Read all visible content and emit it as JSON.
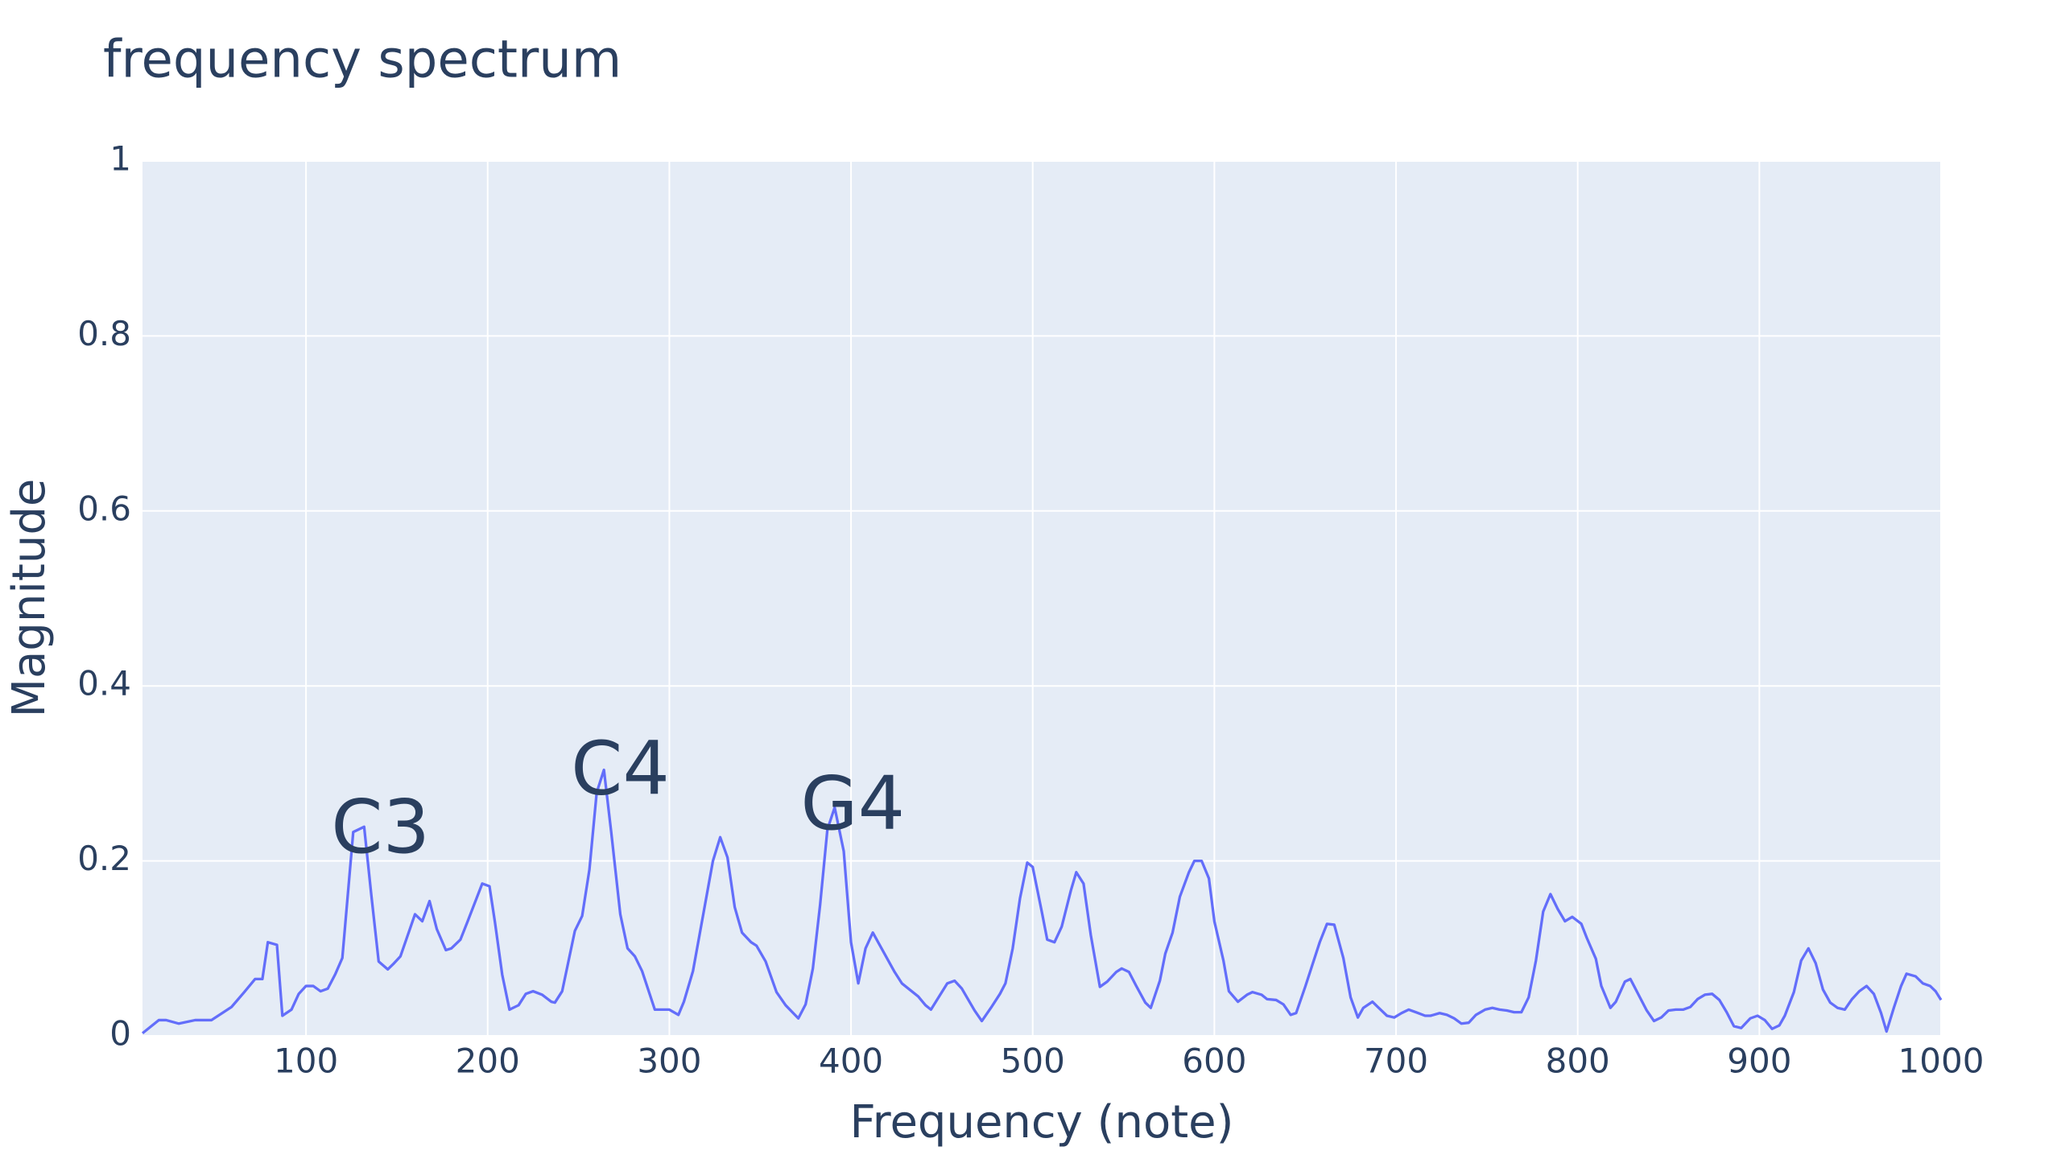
{
  "chart_data": {
    "type": "line",
    "title": "frequency spectrum",
    "x_label": "Frequency (note)",
    "y_label": "Magnitude",
    "xlim": [
      10,
      1000
    ],
    "ylim": [
      0,
      1
    ],
    "xticks": [
      100,
      200,
      300,
      400,
      500,
      600,
      700,
      800,
      900,
      1000
    ],
    "yticks": [
      0,
      0.2,
      0.4,
      0.6,
      0.8,
      1
    ],
    "grid": true,
    "annotations": [
      {
        "text": "C3",
        "x": 141,
        "y": 0.233
      },
      {
        "text": "C4",
        "x": 273,
        "y": 0.3
      },
      {
        "text": "G4",
        "x": 401,
        "y": 0.26
      }
    ],
    "series": [
      {
        "color": "#636efa",
        "x": [
          10,
          19,
          23,
          30,
          39,
          48,
          59,
          66,
          72,
          76,
          79,
          84,
          87,
          92,
          96,
          100,
          104,
          108,
          112,
          116,
          120,
          126,
          132,
          136,
          140,
          145,
          148,
          152,
          160,
          164,
          168,
          172,
          177,
          180,
          185,
          189,
          197,
          201,
          204,
          208,
          212,
          217,
          221,
          225,
          230,
          235,
          237,
          241,
          248,
          252,
          256,
          260,
          264,
          268,
          273,
          277,
          281,
          285,
          292,
          300,
          305,
          308,
          313,
          324,
          328,
          332,
          336,
          340,
          345,
          348,
          353,
          359,
          364,
          371,
          375,
          379,
          383,
          387,
          391,
          396,
          400,
          404,
          408,
          412,
          416,
          424,
          428,
          437,
          441,
          444,
          453,
          457,
          461,
          468,
          472,
          477,
          482,
          485,
          489,
          493,
          497,
          500,
          505,
          508,
          512,
          516,
          521,
          524,
          528,
          532,
          537,
          541,
          546,
          549,
          553,
          557,
          562,
          565,
          570,
          573,
          577,
          581,
          586,
          589,
          593,
          597,
          600,
          605,
          608,
          613,
          618,
          621,
          626,
          629,
          634,
          638,
          642,
          645,
          650,
          658,
          662,
          666,
          671,
          675,
          679,
          682,
          687,
          690,
          695,
          699,
          703,
          707,
          711,
          716,
          719,
          724,
          728,
          732,
          736,
          740,
          744,
          749,
          753,
          757,
          761,
          765,
          769,
          773,
          777,
          781,
          785,
          789,
          793,
          797,
          802,
          805,
          810,
          813,
          818,
          821,
          826,
          829,
          834,
          838,
          842,
          846,
          850,
          854,
          858,
          862,
          866,
          870,
          874,
          878,
          882,
          886,
          890,
          895,
          899,
          903,
          907,
          911,
          914,
          919,
          923,
          927,
          931,
          935,
          939,
          943,
          947,
          951,
          955,
          959,
          963,
          967,
          970,
          974,
          978,
          981,
          986,
          990,
          994,
          997,
          1000
        ],
        "values": [
          0.003,
          0.018,
          0.018,
          0.014,
          0.018,
          0.018,
          0.033,
          0.05,
          0.065,
          0.065,
          0.107,
          0.104,
          0.023,
          0.03,
          0.048,
          0.057,
          0.057,
          0.051,
          0.054,
          0.07,
          0.089,
          0.233,
          0.239,
          0.16,
          0.085,
          0.076,
          0.082,
          0.091,
          0.139,
          0.131,
          0.154,
          0.122,
          0.098,
          0.1,
          0.11,
          0.131,
          0.174,
          0.171,
          0.13,
          0.07,
          0.03,
          0.035,
          0.048,
          0.051,
          0.047,
          0.039,
          0.038,
          0.051,
          0.12,
          0.137,
          0.19,
          0.278,
          0.304,
          0.233,
          0.139,
          0.1,
          0.091,
          0.074,
          0.03,
          0.03,
          0.024,
          0.039,
          0.074,
          0.2,
          0.227,
          0.204,
          0.147,
          0.118,
          0.107,
          0.103,
          0.085,
          0.05,
          0.035,
          0.02,
          0.036,
          0.077,
          0.15,
          0.236,
          0.261,
          0.211,
          0.107,
          0.06,
          0.1,
          0.118,
          0.103,
          0.073,
          0.06,
          0.045,
          0.035,
          0.03,
          0.06,
          0.063,
          0.054,
          0.029,
          0.017,
          0.032,
          0.048,
          0.06,
          0.1,
          0.157,
          0.198,
          0.193,
          0.142,
          0.11,
          0.107,
          0.125,
          0.166,
          0.187,
          0.174,
          0.115,
          0.056,
          0.062,
          0.073,
          0.077,
          0.073,
          0.057,
          0.038,
          0.032,
          0.063,
          0.094,
          0.118,
          0.159,
          0.187,
          0.2,
          0.2,
          0.18,
          0.131,
          0.086,
          0.051,
          0.039,
          0.047,
          0.05,
          0.047,
          0.042,
          0.041,
          0.036,
          0.024,
          0.026,
          0.056,
          0.107,
          0.128,
          0.127,
          0.089,
          0.044,
          0.021,
          0.032,
          0.039,
          0.033,
          0.023,
          0.021,
          0.026,
          0.03,
          0.027,
          0.023,
          0.023,
          0.026,
          0.024,
          0.02,
          0.014,
          0.015,
          0.024,
          0.03,
          0.032,
          0.03,
          0.029,
          0.027,
          0.027,
          0.044,
          0.086,
          0.142,
          0.162,
          0.145,
          0.131,
          0.136,
          0.128,
          0.112,
          0.088,
          0.057,
          0.032,
          0.039,
          0.062,
          0.065,
          0.045,
          0.029,
          0.017,
          0.021,
          0.029,
          0.03,
          0.03,
          0.033,
          0.042,
          0.047,
          0.048,
          0.041,
          0.027,
          0.011,
          0.009,
          0.02,
          0.023,
          0.018,
          0.008,
          0.012,
          0.023,
          0.05,
          0.086,
          0.1,
          0.083,
          0.053,
          0.038,
          0.032,
          0.03,
          0.042,
          0.051,
          0.057,
          0.048,
          0.026,
          0.005,
          0.032,
          0.057,
          0.071,
          0.068,
          0.06,
          0.057,
          0.051,
          0.041
        ]
      }
    ]
  }
}
